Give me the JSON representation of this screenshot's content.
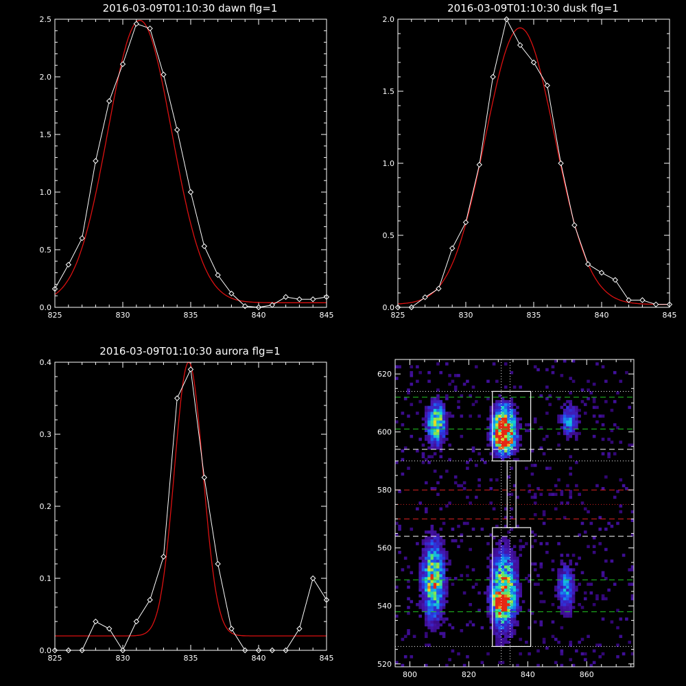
{
  "colors": {
    "background": "#000000",
    "axis": "#ffffff",
    "observed": "#ffffff",
    "fit": "#dd1111",
    "boxes": "#ffffff",
    "guide_green": "#22cc22",
    "guide_red": "#dd2222",
    "guide_white": "#ffffff"
  },
  "chart_data": [
    {
      "type": "line",
      "title": "2016-03-09T01:10:30 dawn flg=1",
      "xlim": [
        825,
        845
      ],
      "ylim": [
        0,
        2.5
      ],
      "x_ticks": [
        "825",
        "830",
        "835",
        "840",
        "845"
      ],
      "y_ticks": [
        "0.0",
        "0.5",
        "1.0",
        "1.5",
        "2.0",
        "2.5"
      ],
      "series": [
        {
          "role": "observed",
          "x": [
            825,
            826,
            827,
            828,
            829,
            830,
            831,
            832,
            833,
            834,
            835,
            836,
            837,
            838,
            839,
            840,
            841,
            842,
            843,
            844,
            845
          ],
          "y": [
            0.16,
            0.37,
            0.6,
            1.27,
            1.79,
            2.11,
            2.46,
            2.42,
            2.02,
            1.54,
            1.0,
            0.53,
            0.28,
            0.12,
            0.01,
            0.0,
            0.02,
            0.09,
            0.07,
            0.07,
            0.09
          ]
        },
        {
          "role": "fit",
          "model": "gaussian",
          "amplitude": 2.45,
          "center": 831.25,
          "sigma": 2.35,
          "baseline": 0.04
        }
      ]
    },
    {
      "type": "line",
      "title": "2016-03-09T01:10:30 dusk flg=1",
      "xlim": [
        825,
        845
      ],
      "ylim": [
        0,
        2.0
      ],
      "x_ticks": [
        "825",
        "830",
        "835",
        "840",
        "845"
      ],
      "y_ticks": [
        "0.0",
        "0.5",
        "1.0",
        "1.5",
        "2.0"
      ],
      "series": [
        {
          "role": "observed",
          "x": [
            825,
            826,
            827,
            828,
            829,
            830,
            831,
            832,
            833,
            834,
            835,
            836,
            837,
            838,
            839,
            840,
            841,
            842,
            843,
            844,
            845
          ],
          "y": [
            0.0,
            0.0,
            0.07,
            0.13,
            0.41,
            0.59,
            0.99,
            1.6,
            2.0,
            1.82,
            1.7,
            1.54,
            1.0,
            0.57,
            0.3,
            0.24,
            0.19,
            0.05,
            0.05,
            0.02,
            0.02
          ]
        },
        {
          "role": "fit",
          "model": "gaussian",
          "amplitude": 1.92,
          "center": 834.0,
          "sigma": 2.55,
          "baseline": 0.02
        }
      ]
    },
    {
      "type": "line",
      "title": "2016-03-09T01:10:30 aurora flg=1",
      "xlim": [
        825,
        845
      ],
      "ylim": [
        0,
        0.4
      ],
      "x_ticks": [
        "825",
        "830",
        "835",
        "840",
        "845"
      ],
      "y_ticks": [
        "0.0",
        "0.1",
        "0.2",
        "0.3",
        "0.4"
      ],
      "series": [
        {
          "role": "observed",
          "x": [
            825,
            826,
            827,
            828,
            829,
            830,
            831,
            832,
            833,
            834,
            835,
            836,
            837,
            838,
            839,
            840,
            841,
            842,
            843,
            844,
            845
          ],
          "y": [
            0.0,
            0.0,
            0.0,
            0.04,
            0.03,
            0.0,
            0.04,
            0.07,
            0.13,
            0.35,
            0.39,
            0.24,
            0.12,
            0.03,
            0.0,
            0.0,
            0.0,
            0.0,
            0.03,
            0.1,
            0.07
          ]
        },
        {
          "role": "fit",
          "model": "gaussian",
          "amplitude": 0.38,
          "center": 834.85,
          "sigma": 1.05,
          "baseline": 0.02
        }
      ]
    },
    {
      "type": "heatmap",
      "title": "",
      "xlim": [
        795,
        876
      ],
      "ylim": [
        519,
        625
      ],
      "x_ticks": [
        "800",
        "820",
        "840",
        "860"
      ],
      "y_ticks": [
        "520",
        "540",
        "560",
        "580",
        "600",
        "620"
      ],
      "blobs": [
        {
          "x": 832,
          "y": 603,
          "sx": 2.6,
          "sy": 4.5,
          "amp": 0.95
        },
        {
          "x": 832,
          "y": 597,
          "sx": 2.6,
          "sy": 3.2,
          "amp": 0.9
        },
        {
          "x": 832,
          "y": 545,
          "sx": 3.0,
          "sy": 9.0,
          "amp": 0.85
        },
        {
          "x": 831,
          "y": 541,
          "sx": 2.0,
          "sy": 3.0,
          "amp": 0.55
        },
        {
          "x": 809,
          "y": 603,
          "sx": 2.2,
          "sy": 5.0,
          "amp": 0.75
        },
        {
          "x": 808,
          "y": 549,
          "sx": 2.6,
          "sy": 9.0,
          "amp": 0.8
        },
        {
          "x": 854,
          "y": 604,
          "sx": 2.0,
          "sy": 4.0,
          "amp": 0.45
        },
        {
          "x": 853,
          "y": 546,
          "sx": 2.0,
          "sy": 6.0,
          "amp": 0.45
        }
      ],
      "boxes": [
        {
          "x0": 828,
          "x1": 841,
          "y0": 590,
          "y1": 614
        },
        {
          "x0": 828,
          "x1": 841,
          "y0": 526,
          "y1": 567
        },
        {
          "x0": 833,
          "x1": 836,
          "y0": 567,
          "y1": 590
        }
      ],
      "vlines": [
        {
          "x": 831,
          "style": "dotted",
          "color": "guide_white"
        },
        {
          "x": 834,
          "style": "dotted",
          "color": "guide_white"
        }
      ],
      "hlines": [
        {
          "y": 614,
          "style": "dotted",
          "color": "guide_white"
        },
        {
          "y": 612,
          "style": "dashed",
          "color": "guide_green"
        },
        {
          "y": 601,
          "style": "dashed",
          "color": "guide_green"
        },
        {
          "y": 594,
          "style": "dashed",
          "color": "guide_white"
        },
        {
          "y": 590,
          "style": "dotted",
          "color": "guide_white"
        },
        {
          "y": 580,
          "style": "dashed",
          "color": "guide_red"
        },
        {
          "y": 575,
          "style": "dotted",
          "color": "guide_red"
        },
        {
          "y": 570,
          "style": "dashed",
          "color": "guide_red"
        },
        {
          "y": 564,
          "style": "dashed",
          "color": "guide_white"
        },
        {
          "y": 549,
          "style": "dashed",
          "color": "guide_green"
        },
        {
          "y": 538,
          "style": "dashed",
          "color": "guide_green"
        },
        {
          "y": 526,
          "style": "dotted",
          "color": "guide_white"
        }
      ]
    }
  ]
}
